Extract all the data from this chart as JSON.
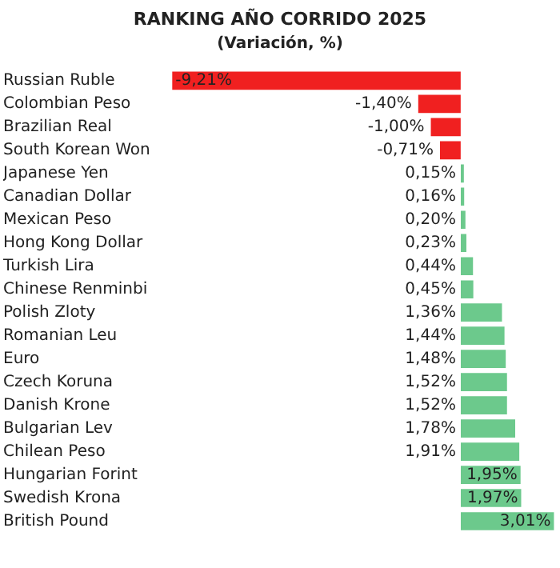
{
  "chart_data": {
    "type": "bar",
    "orientation": "horizontal",
    "title": "RANKING AÑO CORRIDO 2025",
    "subtitle": "(Variación, %)",
    "categories": [
      "Russian Ruble",
      "Colombian Peso",
      "Brazilian Real",
      "South Korean Won",
      "Japanese Yen",
      "Canadian Dollar",
      "Mexican Peso",
      "Hong Kong Dollar",
      "Turkish Lira",
      "Chinese Renminbi",
      "Polish Zloty",
      "Romanian Leu",
      "Euro",
      "Czech Koruna",
      "Danish Krone",
      "Bulgarian Lev",
      "Chilean Peso",
      "Hungarian Forint",
      "Swedish Krona",
      "British Pound"
    ],
    "values": [
      -9.21,
      -1.4,
      -1.0,
      -0.71,
      0.15,
      0.16,
      0.2,
      0.23,
      0.44,
      0.45,
      1.36,
      1.44,
      1.48,
      1.52,
      1.52,
      1.78,
      1.91,
      1.95,
      1.97,
      3.01
    ],
    "value_labels": [
      "-9,21%",
      "-1,40%",
      "-1,00%",
      "-0,71%",
      "0,15%",
      "0,16%",
      "0,20%",
      "0,23%",
      "0,44%",
      "0,45%",
      "1,36%",
      "1,44%",
      "1,48%",
      "1,52%",
      "1,52%",
      "1,78%",
      "1,91%",
      "1,95%",
      "1,97%",
      "3,01%"
    ],
    "colors": [
      "#f02020",
      "#f02020",
      "#f02020",
      "#f02020",
      "#6cc98c",
      "#6cc98c",
      "#6cc98c",
      "#6cc98c",
      "#6cc98c",
      "#6cc98c",
      "#6cc98c",
      "#6cc98c",
      "#6cc98c",
      "#6cc98c",
      "#6cc98c",
      "#6cc98c",
      "#6cc98c",
      "#6cc98c",
      "#6cc98c",
      "#6cc98c"
    ],
    "xlim": [
      -9.25,
      3.05
    ],
    "tick_labels": "y",
    "legend": false
  }
}
